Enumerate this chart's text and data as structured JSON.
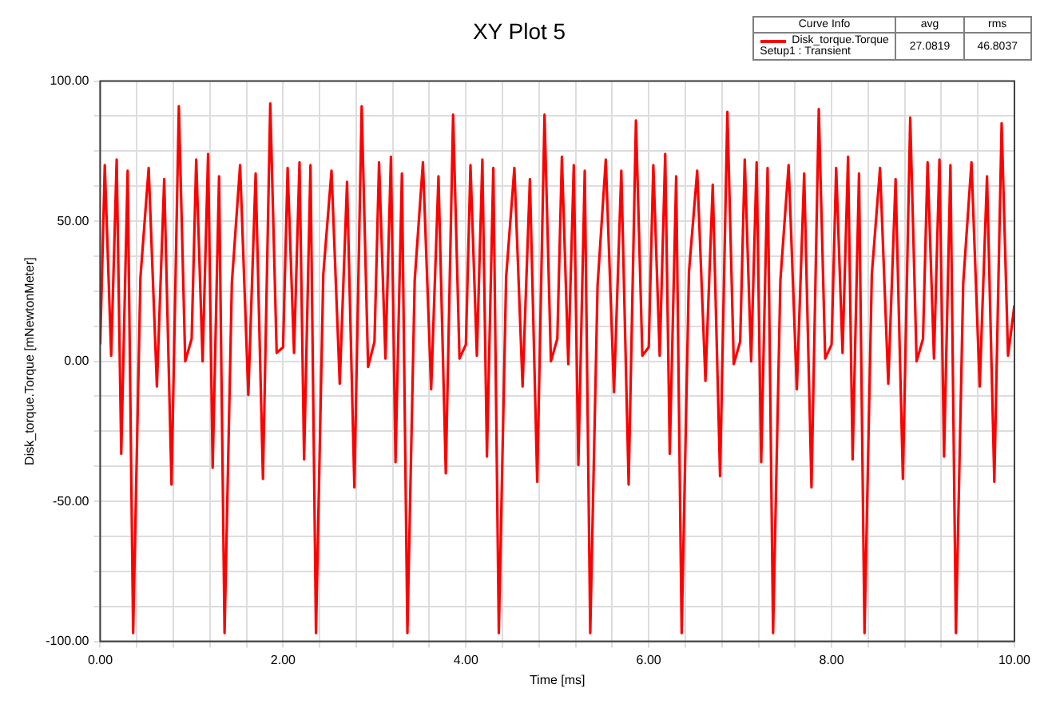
{
  "chart_data": {
    "type": "line",
    "title": "XY Plot 5",
    "xlabel": "Time [ms]",
    "ylabel": "Disk_torque.Torque [mNewtonMeter]",
    "x": [
      0,
      0.05,
      0.12,
      0.18,
      0.23,
      0.3,
      0.36,
      0.44,
      0.53,
      0.62,
      0.7,
      0.78,
      0.86,
      0.93,
      1,
      1.05,
      1.12,
      1.18,
      1.23,
      1.3,
      1.36,
      1.44,
      1.53,
      1.62,
      1.7,
      1.78,
      1.86,
      1.93,
      2,
      2.05,
      2.12,
      2.18,
      2.23,
      2.3,
      2.36,
      2.44,
      2.53,
      2.62,
      2.7,
      2.78,
      2.86,
      2.93,
      3,
      3.05,
      3.12,
      3.18,
      3.23,
      3.3,
      3.36,
      3.44,
      3.53,
      3.62,
      3.7,
      3.78,
      3.86,
      3.93,
      4,
      4.05,
      4.12,
      4.18,
      4.23,
      4.3,
      4.36,
      4.44,
      4.53,
      4.62,
      4.7,
      4.78,
      4.86,
      4.93,
      5,
      5.05,
      5.12,
      5.18,
      5.23,
      5.3,
      5.36,
      5.44,
      5.53,
      5.62,
      5.7,
      5.78,
      5.86,
      5.93,
      6,
      6.05,
      6.12,
      6.18,
      6.23,
      6.3,
      6.36,
      6.44,
      6.53,
      6.62,
      6.7,
      6.78,
      6.86,
      6.93,
      7,
      7.05,
      7.12,
      7.18,
      7.23,
      7.3,
      7.36,
      7.44,
      7.53,
      7.62,
      7.7,
      7.78,
      7.86,
      7.93,
      8,
      8.05,
      8.12,
      8.18,
      8.23,
      8.3,
      8.36,
      8.44,
      8.53,
      8.62,
      8.7,
      8.78,
      8.86,
      8.93,
      9,
      9.05,
      9.12,
      9.18,
      9.23,
      9.3,
      9.36,
      9.44,
      9.53,
      9.62,
      9.7,
      9.78,
      9.86,
      9.93,
      10
    ],
    "series": [
      {
        "name": "Disk_torque.Torque",
        "color": "#ff0000",
        "values": [
          6,
          70,
          2,
          72,
          -33,
          68,
          -97,
          30,
          69,
          -9,
          65,
          -44,
          91,
          0,
          8,
          72,
          0,
          74,
          -38,
          66,
          -97,
          28,
          70,
          -12,
          67,
          -42,
          92,
          3,
          5,
          69,
          3,
          71,
          -35,
          70,
          -97,
          31,
          68,
          -8,
          64,
          -45,
          91,
          -2,
          7,
          71,
          1,
          73,
          -36,
          67,
          -97,
          29,
          71,
          -10,
          66,
          -40,
          88,
          1,
          6,
          70,
          2,
          72,
          -34,
          69,
          -97,
          30,
          69,
          -9,
          65,
          -43,
          88,
          0,
          8,
          73,
          -1,
          70,
          -37,
          68,
          -97,
          27,
          72,
          -11,
          68,
          -44,
          86,
          2,
          5,
          70,
          2,
          74,
          -33,
          66,
          -97,
          32,
          68,
          -7,
          63,
          -41,
          89,
          -1,
          7,
          72,
          0,
          71,
          -36,
          69,
          -97,
          29,
          70,
          -10,
          67,
          -45,
          90,
          1,
          6,
          69,
          3,
          73,
          -35,
          67,
          -97,
          31,
          69,
          -8,
          65,
          -42,
          87,
          0,
          8,
          71,
          1,
          72,
          -34,
          70,
          -97,
          28,
          71,
          -9,
          66,
          -43,
          85,
          2,
          20
        ]
      }
    ],
    "xlim": [
      0,
      10
    ],
    "xticks": [
      {
        "value": 0,
        "label": "0.00"
      },
      {
        "value": 0.4,
        "label": null
      },
      {
        "value": 0.8,
        "label": null
      },
      {
        "value": 1.2,
        "label": null
      },
      {
        "value": 1.6,
        "label": null
      },
      {
        "value": 2,
        "label": "2.00"
      },
      {
        "value": 2.4,
        "label": null
      },
      {
        "value": 2.8,
        "label": null
      },
      {
        "value": 3.2,
        "label": null
      },
      {
        "value": 3.6,
        "label": null
      },
      {
        "value": 4,
        "label": "4.00"
      },
      {
        "value": 4.4,
        "label": null
      },
      {
        "value": 4.8,
        "label": null
      },
      {
        "value": 5.2,
        "label": null
      },
      {
        "value": 5.6,
        "label": null
      },
      {
        "value": 6,
        "label": "6.00"
      },
      {
        "value": 6.4,
        "label": null
      },
      {
        "value": 6.8,
        "label": null
      },
      {
        "value": 7.2,
        "label": null
      },
      {
        "value": 7.6,
        "label": null
      },
      {
        "value": 8,
        "label": "8.00"
      },
      {
        "value": 8.4,
        "label": null
      },
      {
        "value": 8.8,
        "label": null
      },
      {
        "value": 9.2,
        "label": null
      },
      {
        "value": 9.6,
        "label": null
      },
      {
        "value": 10,
        "label": "10.00"
      }
    ],
    "ylim": [
      -100,
      100
    ],
    "yticks": [
      {
        "value": -100,
        "label": "-100.00"
      },
      {
        "value": -87.5,
        "label": null
      },
      {
        "value": -75,
        "label": null
      },
      {
        "value": -62.5,
        "label": null
      },
      {
        "value": -50,
        "label": "-50.00"
      },
      {
        "value": -37.5,
        "label": null
      },
      {
        "value": -25,
        "label": null
      },
      {
        "value": -12.5,
        "label": null
      },
      {
        "value": 0,
        "label": "0.00"
      },
      {
        "value": 12.5,
        "label": null
      },
      {
        "value": 25,
        "label": null
      },
      {
        "value": 37.5,
        "label": null
      },
      {
        "value": 50,
        "label": "50.00"
      },
      {
        "value": 62.5,
        "label": null
      },
      {
        "value": 75,
        "label": null
      },
      {
        "value": 87.5,
        "label": null
      },
      {
        "value": 100,
        "label": "100.00"
      }
    ],
    "grid": true,
    "legend": "top right",
    "annotations": [
      "Curve Info",
      "avg",
      "rms",
      "Setup1 : Transient",
      "27.0819",
      "46.8037"
    ]
  }
}
